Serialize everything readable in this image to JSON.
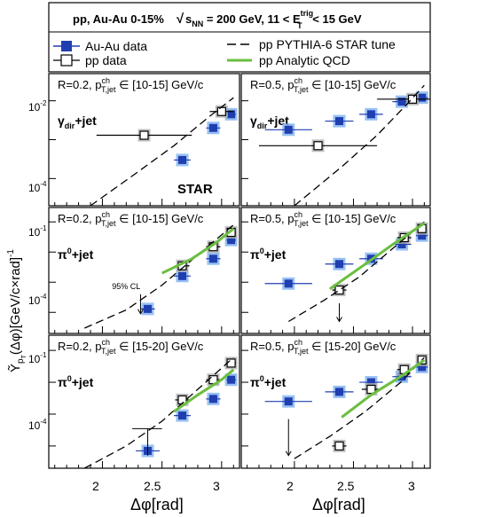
{
  "header": {
    "left": "pp, Au-Au 0-15%",
    "sqrt": "√",
    "s": "s",
    "nn": "NN",
    "mid": " = 200 GeV, 11 < E",
    "trig": "trig",
    "t": "T",
    "right": " < 15 GeV"
  },
  "legend": {
    "auau": "Au-Au data",
    "pp": "pp data",
    "pythia": "pp PYTHIA-6 STAR tune",
    "analytic": "pp Analytic QCD"
  },
  "axis": {
    "xlabel": "Δφ[rad]",
    "ylabel": "Ỹ",
    "ylabel_sub": "p",
    "ylabel_subsub": "T",
    "ylabel_rest": "(Δφ)[GeV/c×rad]",
    "ylabel_sup": "-1",
    "xticks": [
      "2",
      "2.5",
      "3"
    ],
    "star": "STAR",
    "cl": "95% CL"
  },
  "colors": {
    "auau": "#1f3fb0",
    "auau_box": "#7fb0f0",
    "pp_box": "#b0b0b0",
    "analytic": "#6abf40"
  },
  "chart_data": [
    {
      "type": "scatter",
      "panel": "top-left",
      "label_r": "R=0.2, p",
      "label_ch": "ch",
      "label_tjet": "T,jet",
      "label_range": "∈ [10-15] GeV/c",
      "trigger": "γ",
      "trigger_sub": "dir",
      "trigger_rest": "+jet",
      "yticks": [
        "10",
        "10"
      ],
      "yticks_exp": [
        "-2",
        "-4"
      ],
      "ylim": [
        2e-05,
        0.05
      ],
      "xlim": [
        1.55,
        3.15
      ],
      "ylog": true,
      "series": [
        {
          "name": "Au-Au data",
          "x": [
            2.67,
            2.93,
            3.08
          ],
          "y": [
            0.0003,
            0.002,
            0.0045
          ],
          "xerr": [
            0.07,
            0.06,
            0.04
          ]
        },
        {
          "name": "pp data",
          "x": [
            2.35,
            3.0
          ],
          "y": [
            0.0013,
            0.0053
          ],
          "xerr": [
            0.4,
            0.1
          ]
        },
        {
          "name": "pp PYTHIA-6 STAR tune",
          "x": [
            1.9,
            2.3,
            2.6,
            2.9,
            3.1
          ],
          "y": [
            2e-05,
            0.00015,
            0.0007,
            0.004,
            0.012
          ]
        }
      ]
    },
    {
      "type": "scatter",
      "panel": "top-right",
      "label_r": "R=0.5, p",
      "label_ch": "ch",
      "label_tjet": "T,jet",
      "label_range": "∈ [10-15] GeV/c",
      "trigger": "γ",
      "trigger_sub": "dir",
      "trigger_rest": "+jet",
      "ylim": [
        2e-05,
        0.05
      ],
      "xlim": [
        1.55,
        3.15
      ],
      "ylog": true,
      "series": [
        {
          "name": "Au-Au data",
          "x": [
            1.95,
            2.38,
            2.65,
            2.91,
            3.08
          ],
          "y": [
            0.0018,
            0.003,
            0.0045,
            0.0095,
            0.012
          ],
          "xerr": [
            0.2,
            0.12,
            0.1,
            0.08,
            0.05
          ]
        },
        {
          "name": "pp data",
          "x": [
            2.2,
            3.0
          ],
          "y": [
            0.0007,
            0.011
          ],
          "xerr": [
            0.5,
            0.3
          ]
        },
        {
          "name": "pp PYTHIA-6 STAR tune",
          "x": [
            2.0,
            2.4,
            2.7,
            2.95,
            3.1
          ],
          "y": [
            2e-05,
            0.0002,
            0.0013,
            0.008,
            0.025
          ]
        }
      ]
    },
    {
      "type": "scatter",
      "panel": "middle-left",
      "label_r": "R=0.2, p",
      "label_ch": "ch",
      "label_tjet": "T,jet",
      "label_range": "∈ [10-15] GeV/c",
      "trigger": "π",
      "trigger_sup": "0",
      "trigger_rest": "+jet",
      "yticks": [
        "10",
        "10"
      ],
      "yticks_exp": [
        "-1",
        "-4"
      ],
      "ylim": [
        2e-05,
        0.3
      ],
      "xlim": [
        1.55,
        3.15
      ],
      "ylog": true,
      "series": [
        {
          "name": "Au-Au data",
          "x": [
            2.38,
            2.67,
            2.93,
            3.08
          ],
          "y": [
            0.00013,
            0.0016,
            0.006,
            0.025
          ],
          "xerr": [
            0.06,
            0.07,
            0.06,
            0.04
          ]
        },
        {
          "name": "pp data",
          "x": [
            2.67,
            2.93,
            3.08
          ],
          "y": [
            0.0035,
            0.015,
            0.045
          ],
          "xerr": [
            0.06,
            0.06,
            0.04
          ]
        },
        {
          "name": "pp PYTHIA-6 STAR tune",
          "x": [
            1.85,
            2.2,
            2.5,
            2.8,
            3.1
          ],
          "y": [
            3e-05,
            0.00012,
            0.0008,
            0.008,
            0.08
          ]
        },
        {
          "name": "pp Analytic QCD",
          "x": [
            2.5,
            2.75,
            2.95,
            3.1
          ],
          "y": [
            0.002,
            0.006,
            0.02,
            0.06
          ]
        }
      ]
    },
    {
      "type": "scatter",
      "panel": "middle-right",
      "label_r": "R=0.5, p",
      "label_ch": "ch",
      "label_tjet": "T,jet",
      "label_range": "∈ [10-15] GeV/c",
      "trigger": "π",
      "trigger_sup": "0",
      "trigger_rest": "+jet",
      "ylim": [
        2e-05,
        0.3
      ],
      "xlim": [
        1.55,
        3.15
      ],
      "ylog": true,
      "series": [
        {
          "name": "Au-Au data",
          "x": [
            1.95,
            2.38,
            2.65,
            2.91,
            3.08
          ],
          "y": [
            0.0009,
            0.004,
            0.006,
            0.018,
            0.035
          ],
          "xerr": [
            0.2,
            0.12,
            0.1,
            0.08,
            0.05
          ]
        },
        {
          "name": "pp data",
          "x": [
            2.38,
            2.93,
            3.08
          ],
          "y": [
            0.00055,
            0.03,
            0.06
          ],
          "xerr": [
            0.06,
            0.06,
            0.04
          ]
        },
        {
          "name": "pp PYTHIA-6 STAR tune",
          "x": [
            1.95,
            2.25,
            2.55,
            2.85,
            3.1
          ],
          "y": [
            5e-05,
            0.00025,
            0.0015,
            0.015,
            0.1
          ]
        },
        {
          "name": "pp Analytic QCD",
          "x": [
            2.3,
            2.6,
            2.85,
            3.1
          ],
          "y": [
            0.0006,
            0.004,
            0.02,
            0.09
          ]
        }
      ]
    },
    {
      "type": "scatter",
      "panel": "bottom-left",
      "label_r": "R=0.2, p",
      "label_ch": "ch",
      "label_tjet": "T,jet",
      "label_range": "∈ [15-20] GeV/c",
      "trigger": "π",
      "trigger_sup": "0",
      "trigger_rest": "+jet",
      "yticks": [
        "10",
        "10"
      ],
      "yticks_exp": [
        "-1",
        "-4"
      ],
      "ylim": [
        2e-05,
        0.3
      ],
      "xlim": [
        1.55,
        3.15
      ],
      "ylog": true,
      "series": [
        {
          "name": "Au-Au data",
          "x": [
            2.38,
            2.67,
            2.93,
            3.08
          ],
          "y": [
            7e-05,
            0.0009,
            0.003,
            0.012
          ],
          "xerr": [
            0.1,
            0.07,
            0.06,
            0.04
          ]
        },
        {
          "name": "pp data",
          "x": [
            2.67,
            2.93,
            3.08
          ],
          "y": [
            0.0028,
            0.012,
            0.04
          ],
          "xerr": [
            0.06,
            0.06,
            0.04
          ]
        },
        {
          "name": "pp PYTHIA-6 STAR tune",
          "x": [
            1.85,
            2.2,
            2.5,
            2.8,
            3.1
          ],
          "y": [
            2e-05,
            0.0001,
            0.0006,
            0.006,
            0.06
          ]
        },
        {
          "name": "pp Analytic QCD",
          "x": [
            2.6,
            2.8,
            3.0,
            3.1
          ],
          "y": [
            0.0012,
            0.004,
            0.012,
            0.025
          ]
        }
      ]
    },
    {
      "type": "scatter",
      "panel": "bottom-right",
      "label_r": "R=0.5, p",
      "label_ch": "ch",
      "label_tjet": "T,jet",
      "label_range": "∈ [15-20] GeV/c",
      "trigger": "π",
      "trigger_sup": "0",
      "trigger_rest": "+jet",
      "ylim": [
        2e-05,
        0.3
      ],
      "xlim": [
        1.55,
        3.15
      ],
      "ylog": true,
      "series": [
        {
          "name": "Au-Au data",
          "x": [
            1.95,
            2.38,
            2.65,
            2.91,
            3.08
          ],
          "y": [
            0.0025,
            0.005,
            0.01,
            0.015,
            0.03
          ],
          "xerr": [
            0.2,
            0.12,
            0.1,
            0.08,
            0.05
          ]
        },
        {
          "name": "pp data",
          "x": [
            2.38,
            2.65,
            2.93,
            3.08
          ],
          "y": [
            0.0001,
            0.006,
            0.025,
            0.05
          ],
          "xerr": [
            0.06,
            0.08,
            0.06,
            0.04
          ]
        },
        {
          "name": "pp PYTHIA-6 STAR tune",
          "x": [
            2.0,
            2.3,
            2.6,
            2.9,
            3.1
          ],
          "y": [
            4e-05,
            0.0002,
            0.0012,
            0.01,
            0.06
          ]
        },
        {
          "name": "pp Analytic QCD",
          "x": [
            2.4,
            2.65,
            2.9,
            3.1
          ],
          "y": [
            0.0008,
            0.004,
            0.015,
            0.05
          ]
        }
      ]
    }
  ]
}
